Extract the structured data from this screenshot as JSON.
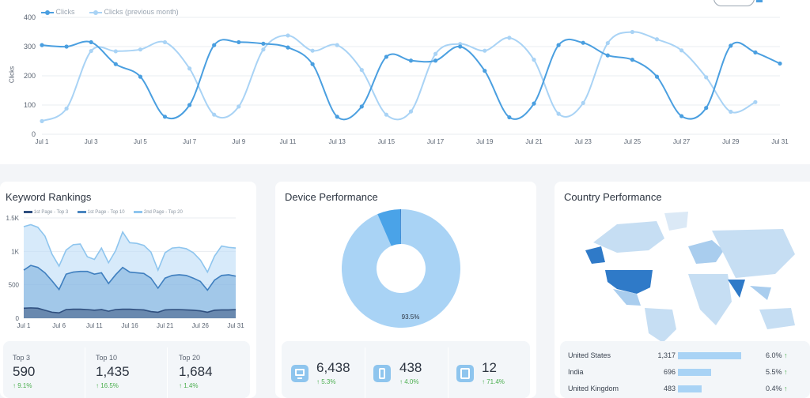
{
  "top_chart": {
    "legend": [
      "Clicks",
      "Clicks (previous month)"
    ],
    "ylabel": "Clicks",
    "ytick_labels": [
      "0",
      "100",
      "200",
      "300",
      "400"
    ],
    "xtick_labels": [
      "Jul 1",
      "Jul 3",
      "Jul 5",
      "Jul 7",
      "Jul 9",
      "Jul 11",
      "Jul 13",
      "Jul 15",
      "Jul 17",
      "Jul 19",
      "Jul 21",
      "Jul 23",
      "Jul 25",
      "Jul 27",
      "Jul 29",
      "Jul 31"
    ],
    "colors": {
      "current": "#4a9fe0",
      "previous": "#a9d3f5"
    }
  },
  "keyword_rankings": {
    "title": "Keyword Rankings",
    "legend": [
      "1st Page - Top 3",
      "1st Page - Top 10",
      "2nd Page - Top 20"
    ],
    "ytick_labels": [
      "0",
      "500",
      "1K",
      "1.5K"
    ],
    "xtick_labels": [
      "Jul 1",
      "Jul 6",
      "Jul 11",
      "Jul 16",
      "Jul 21",
      "Jul 26",
      "Jul 31"
    ],
    "stats": [
      {
        "label": "Top 3",
        "value": "590",
        "delta": "9.1%"
      },
      {
        "label": "Top 10",
        "value": "1,435",
        "delta": "16.5%"
      },
      {
        "label": "Top 20",
        "value": "1,684",
        "delta": "1.4%"
      }
    ]
  },
  "device_performance": {
    "title": "Device Performance",
    "donut_label": "93.5%",
    "stats": [
      {
        "icon": "desktop-icon",
        "value": "6,438",
        "delta": "5.3%"
      },
      {
        "icon": "mobile-icon",
        "value": "438",
        "delta": "4.0%"
      },
      {
        "icon": "tablet-icon",
        "value": "12",
        "delta": "71.4%"
      }
    ]
  },
  "country_performance": {
    "title": "Country Performance",
    "rows": [
      {
        "country": "United States",
        "clicks": "1,317",
        "bar": 1.0,
        "delta": "6.0%"
      },
      {
        "country": "India",
        "clicks": "696",
        "bar": 0.53,
        "delta": "5.5%"
      },
      {
        "country": "United Kingdom",
        "clicks": "483",
        "bar": 0.37,
        "delta": "0.4%"
      }
    ]
  },
  "chart_data": [
    {
      "type": "line",
      "title": "",
      "xlabel": "",
      "ylabel": "Clicks",
      "ylim": [
        0,
        400
      ],
      "x": [
        "Jul 1",
        "Jul 2",
        "Jul 3",
        "Jul 4",
        "Jul 5",
        "Jul 6",
        "Jul 7",
        "Jul 8",
        "Jul 9",
        "Jul 10",
        "Jul 11",
        "Jul 12",
        "Jul 13",
        "Jul 14",
        "Jul 15",
        "Jul 16",
        "Jul 17",
        "Jul 18",
        "Jul 19",
        "Jul 20",
        "Jul 21",
        "Jul 22",
        "Jul 23",
        "Jul 24",
        "Jul 25",
        "Jul 26",
        "Jul 27",
        "Jul 28",
        "Jul 29",
        "Jul 30",
        "Jul 31"
      ],
      "series": [
        {
          "name": "Clicks",
          "values": [
            305,
            300,
            315,
            240,
            197,
            60,
            100,
            305,
            315,
            310,
            297,
            240,
            60,
            95,
            265,
            252,
            252,
            300,
            217,
            58,
            105,
            305,
            313,
            270,
            255,
            197,
            62,
            90,
            303,
            280,
            242
          ]
        },
        {
          "name": "Clicks (previous month)",
          "values": [
            45,
            88,
            285,
            284,
            290,
            315,
            225,
            67,
            95,
            290,
            338,
            286,
            305,
            220,
            67,
            78,
            275,
            309,
            286,
            330,
            255,
            70,
            107,
            312,
            350,
            325,
            287,
            195,
            77,
            110,
            null
          ]
        }
      ]
    },
    {
      "type": "area",
      "title": "Keyword Rankings",
      "ylim": [
        0,
        1500
      ],
      "x": [
        "Jul 1",
        "Jul 2",
        "Jul 3",
        "Jul 4",
        "Jul 5",
        "Jul 6",
        "Jul 7",
        "Jul 8",
        "Jul 9",
        "Jul 10",
        "Jul 11",
        "Jul 12",
        "Jul 13",
        "Jul 14",
        "Jul 15",
        "Jul 16",
        "Jul 17",
        "Jul 18",
        "Jul 19",
        "Jul 20",
        "Jul 21",
        "Jul 22",
        "Jul 23",
        "Jul 24",
        "Jul 25",
        "Jul 26",
        "Jul 27",
        "Jul 28",
        "Jul 29",
        "Jul 30",
        "Jul 31"
      ],
      "series": [
        {
          "name": "1st Page - Top 3",
          "values": [
            150,
            155,
            150,
            120,
            90,
            80,
            130,
            135,
            135,
            130,
            120,
            130,
            105,
            130,
            135,
            135,
            130,
            125,
            100,
            90,
            125,
            130,
            130,
            125,
            120,
            110,
            90,
            120,
            125,
            125,
            130
          ]
        },
        {
          "name": "1st Page - Top 10",
          "values": [
            720,
            790,
            760,
            680,
            560,
            430,
            660,
            690,
            700,
            700,
            660,
            680,
            520,
            650,
            760,
            690,
            680,
            670,
            600,
            450,
            600,
            640,
            650,
            640,
            600,
            550,
            420,
            570,
            640,
            650,
            630
          ]
        },
        {
          "name": "2nd Page - Top 20",
          "values": [
            1370,
            1400,
            1360,
            1230,
            960,
            780,
            1020,
            1100,
            1110,
            920,
            880,
            1050,
            830,
            1010,
            1290,
            1130,
            1120,
            1090,
            990,
            720,
            980,
            1050,
            1060,
            1040,
            980,
            870,
            690,
            930,
            1080,
            1060,
            1050
          ]
        }
      ]
    },
    {
      "type": "pie",
      "title": "Device Performance",
      "categories": [
        "Desktop",
        "Mobile",
        "Tablet"
      ],
      "values": [
        93.5,
        6.3,
        0.2
      ]
    }
  ]
}
